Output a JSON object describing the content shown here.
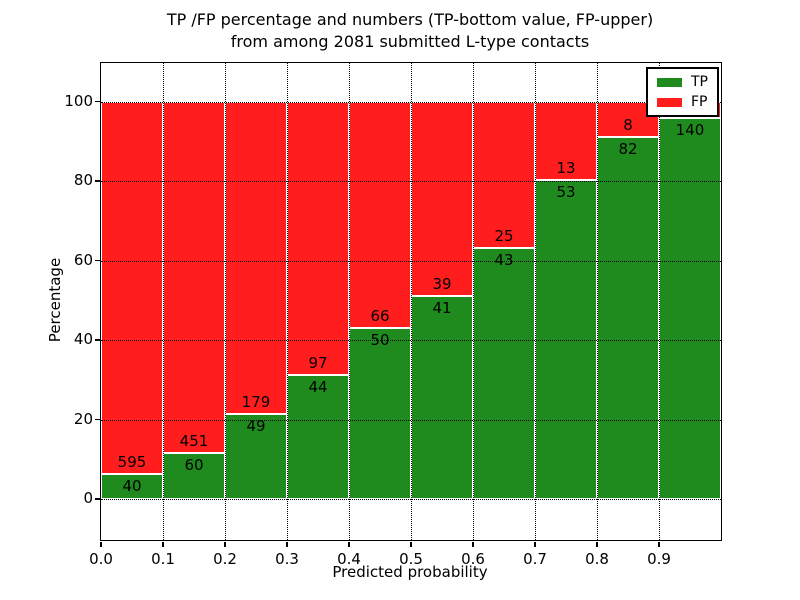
{
  "chart_data": {
    "type": "bar",
    "stacked": true,
    "title_line1": "TP /FP percentage and numbers (TP-bottom value, FP-upper)",
    "title_line2": "from among 2081 submitted L-type contacts",
    "xlabel": "Predicted probability",
    "ylabel": "Percentage",
    "x_tick_labels": [
      "0.0",
      "0.1",
      "0.2",
      "0.3",
      "0.4",
      "0.5",
      "0.6",
      "0.7",
      "0.8",
      "0.9"
    ],
    "y_tick_values": [
      0,
      20,
      40,
      60,
      80,
      100
    ],
    "xlim": [
      0.0,
      1.0
    ],
    "ylim": [
      -10.3,
      109.7
    ],
    "grid": "dotted",
    "colors": {
      "tp": "#1f8b1f",
      "fp": "#ff1d1d",
      "bar_edge": "#ffffff"
    },
    "legend": {
      "position": "upper right",
      "entries": [
        {
          "label": "TP",
          "color": "#1f8b1f"
        },
        {
          "label": "FP",
          "color": "#ff1d1d"
        }
      ]
    },
    "bars": [
      {
        "bin": "0.0-0.1",
        "tp": 40,
        "fp": 595,
        "tp_pct": 6.3
      },
      {
        "bin": "0.1-0.2",
        "tp": 60,
        "fp": 451,
        "tp_pct": 11.7
      },
      {
        "bin": "0.2-0.3",
        "tp": 49,
        "fp": 179,
        "tp_pct": 21.5
      },
      {
        "bin": "0.3-0.4",
        "tp": 44,
        "fp": 97,
        "tp_pct": 31.2
      },
      {
        "bin": "0.4-0.5",
        "tp": 50,
        "fp": 66,
        "tp_pct": 43.1
      },
      {
        "bin": "0.5-0.6",
        "tp": 41,
        "fp": 39,
        "tp_pct": 51.2
      },
      {
        "bin": "0.6-0.7",
        "tp": 43,
        "fp": 25,
        "tp_pct": 63.2
      },
      {
        "bin": "0.7-0.8",
        "tp": 53,
        "fp": 13,
        "tp_pct": 80.3
      },
      {
        "bin": "0.8-0.9",
        "tp": 82,
        "fp": 8,
        "tp_pct": 91.1
      },
      {
        "bin": "0.9-1.0",
        "tp": 140,
        "fp": null,
        "tp_pct": 95.9
      }
    ]
  }
}
